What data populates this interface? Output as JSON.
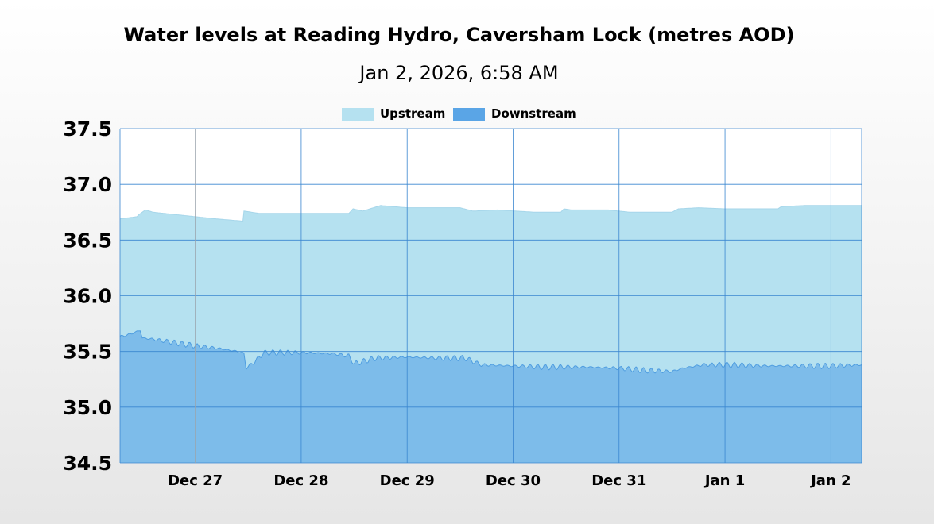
{
  "chart_data": {
    "type": "area",
    "title": "Water levels at Reading Hydro, Caversham Lock (metres AOD)",
    "subtitle": "Jan 2, 2026, 6:58 AM",
    "xlabel": "",
    "ylabel": "",
    "ylim": [
      34.5,
      37.5
    ],
    "yticks": [
      "37.5",
      "37.0",
      "36.5",
      "36.0",
      "35.5",
      "35.0",
      "34.5"
    ],
    "xticks": [
      {
        "label": "Dec 27",
        "day": 27
      },
      {
        "label": "Dec 28",
        "day": 28
      },
      {
        "label": "Dec 29",
        "day": 29
      },
      {
        "label": "Dec 30",
        "day": 30
      },
      {
        "label": "Dec 31",
        "day": 31
      },
      {
        "label": "Jan 1",
        "day": 32
      },
      {
        "label": "Jan 2",
        "day": 33
      }
    ],
    "xlim_days": [
      26.29,
      33.29
    ],
    "grid": true,
    "legend_position": "top-center",
    "series": [
      {
        "name": "Upstream",
        "color": "#b5e1f0",
        "points": [
          [
            26.29,
            36.69
          ],
          [
            26.45,
            36.71
          ],
          [
            26.47,
            36.73
          ],
          [
            26.53,
            36.77
          ],
          [
            26.6,
            36.75
          ],
          [
            26.8,
            36.73
          ],
          [
            27.0,
            36.71
          ],
          [
            27.2,
            36.69
          ],
          [
            27.45,
            36.67
          ],
          [
            27.46,
            36.76
          ],
          [
            27.6,
            36.74
          ],
          [
            28.0,
            36.74
          ],
          [
            28.45,
            36.74
          ],
          [
            28.49,
            36.78
          ],
          [
            28.58,
            36.76
          ],
          [
            28.75,
            36.81
          ],
          [
            29.0,
            36.79
          ],
          [
            29.5,
            36.79
          ],
          [
            29.62,
            36.76
          ],
          [
            29.85,
            36.77
          ],
          [
            30.2,
            36.75
          ],
          [
            30.45,
            36.75
          ],
          [
            30.48,
            36.78
          ],
          [
            30.55,
            36.77
          ],
          [
            30.9,
            36.77
          ],
          [
            31.1,
            36.75
          ],
          [
            31.5,
            36.75
          ],
          [
            31.56,
            36.78
          ],
          [
            31.75,
            36.79
          ],
          [
            32.0,
            36.78
          ],
          [
            32.5,
            36.78
          ],
          [
            32.53,
            36.8
          ],
          [
            32.75,
            36.81
          ],
          [
            33.0,
            36.81
          ],
          [
            33.29,
            36.81
          ]
        ]
      },
      {
        "name": "Downstream",
        "color": "#5aa5e6",
        "points": [
          [
            26.29,
            35.63
          ],
          [
            26.4,
            35.66
          ],
          [
            26.48,
            35.69
          ],
          [
            26.5,
            35.62
          ],
          [
            26.6,
            35.61
          ],
          [
            26.8,
            35.58
          ],
          [
            27.0,
            35.55
          ],
          [
            27.2,
            35.53
          ],
          [
            27.4,
            35.5
          ],
          [
            27.46,
            35.48
          ],
          [
            27.48,
            35.35
          ],
          [
            27.55,
            35.4
          ],
          [
            27.65,
            35.49
          ],
          [
            28.0,
            35.49
          ],
          [
            28.3,
            35.48
          ],
          [
            28.45,
            35.46
          ],
          [
            28.5,
            35.39
          ],
          [
            28.7,
            35.44
          ],
          [
            29.0,
            35.45
          ],
          [
            29.3,
            35.44
          ],
          [
            29.55,
            35.44
          ],
          [
            29.7,
            35.38
          ],
          [
            30.0,
            35.37
          ],
          [
            30.3,
            35.36
          ],
          [
            30.7,
            35.36
          ],
          [
            31.0,
            35.35
          ],
          [
            31.25,
            35.33
          ],
          [
            31.5,
            35.32
          ],
          [
            31.6,
            35.35
          ],
          [
            31.8,
            35.38
          ],
          [
            32.0,
            35.38
          ],
          [
            32.4,
            35.37
          ],
          [
            32.7,
            35.37
          ],
          [
            33.0,
            35.37
          ],
          [
            33.29,
            35.38
          ]
        ]
      }
    ]
  }
}
